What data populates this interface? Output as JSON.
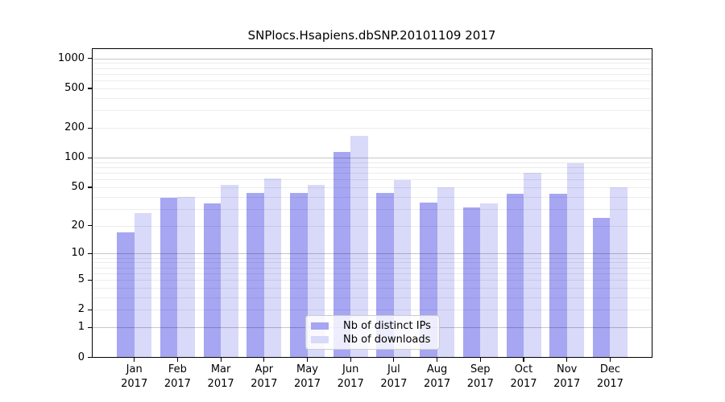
{
  "chart_data": {
    "type": "bar",
    "title": "SNPlocs.Hsapiens.dbSNP.20101109 2017",
    "year": "2017",
    "months": [
      "Jan",
      "Feb",
      "Mar",
      "Apr",
      "May",
      "Jun",
      "Jul",
      "Aug",
      "Sep",
      "Oct",
      "Nov",
      "Dec"
    ],
    "series": [
      {
        "name": "Nb of distinct IPs",
        "color": "#a6a6f2",
        "values": [
          17,
          39,
          34,
          44,
          44,
          115,
          44,
          35,
          31,
          43,
          43,
          24
        ]
      },
      {
        "name": "Nb of downloads",
        "color": "#d9d9f9",
        "values": [
          27,
          40,
          53,
          62,
          53,
          165,
          59,
          50,
          34,
          70,
          88,
          50
        ]
      }
    ],
    "yscale": "log10(1+x)",
    "y_ticks": [
      0,
      1,
      2,
      5,
      10,
      20,
      50,
      100,
      200,
      500,
      1000
    ],
    "ylim": [
      0,
      1270
    ],
    "grid": "horizontal",
    "legend_position": "lower center",
    "colors": {
      "grid_minor": "#ececec",
      "grid_major": "#c8c8c8",
      "axis": "#000000",
      "background": "#ffffff"
    }
  }
}
